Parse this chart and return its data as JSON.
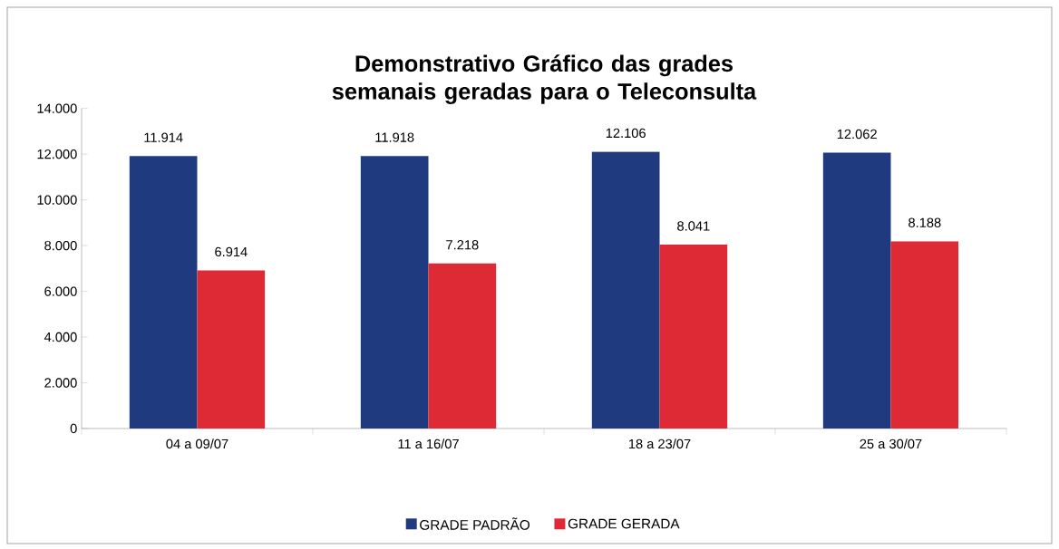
{
  "chart_data": {
    "type": "bar",
    "title": "Demonstrativo Gráfico das grades semanais  geradas para o Teleconsulta",
    "categories": [
      "04 a 09/07",
      "11 a 16/07",
      "18 a 23/07",
      "25 a 30/07"
    ],
    "series": [
      {
        "name": "GRADE PADRÃO",
        "color": "#1f3a7e",
        "values": [
          11914,
          11918,
          12106,
          12062
        ],
        "value_labels": [
          "11.914",
          "11.918",
          "12.106",
          "12.062"
        ]
      },
      {
        "name": "GRADE GERADA",
        "color": "#dd2a35",
        "values": [
          6914,
          7218,
          8041,
          8188
        ],
        "value_labels": [
          "6.914",
          "7.218",
          "8.041",
          "8.188"
        ]
      }
    ],
    "ylim": [
      0,
      14000
    ],
    "yticks": [
      {
        "value": 0,
        "label": "0"
      },
      {
        "value": 2000,
        "label": "2.000"
      },
      {
        "value": 4000,
        "label": "4.000"
      },
      {
        "value": 6000,
        "label": "6.000"
      },
      {
        "value": 8000,
        "label": "8.000"
      },
      {
        "value": 10000,
        "label": "10.000"
      },
      {
        "value": 12000,
        "label": "12.000"
      },
      {
        "value": 14000,
        "label": "14.000"
      }
    ],
    "grid": false,
    "legend": "bottom"
  }
}
